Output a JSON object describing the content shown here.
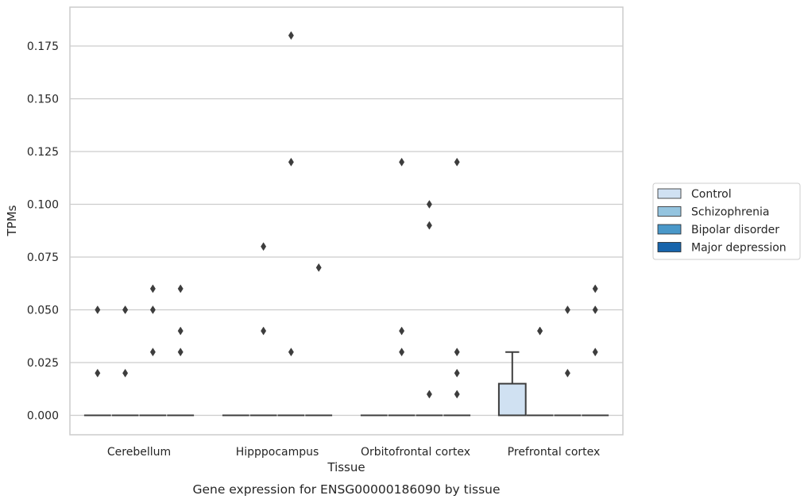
{
  "caption": "Gene expression for ENSG00000186090 by tissue",
  "chart_data": {
    "type": "box",
    "xlabel": "Tissue",
    "ylabel": "TPMs",
    "ylim": [
      -0.009,
      0.191
    ],
    "yticks": [
      0.0,
      0.025,
      0.05,
      0.075,
      0.1,
      0.125,
      0.15,
      0.175
    ],
    "ytick_labels": [
      "0.000",
      "0.025",
      "0.050",
      "0.075",
      "0.100",
      "0.125",
      "0.150",
      "0.175"
    ],
    "grid": "horizontal",
    "legend_placement": "right",
    "categories": [
      "Cerebellum",
      "Hipppocampus",
      "Orbitofrontal cortex",
      "Prefrontal cortex"
    ],
    "series": [
      {
        "name": "Control",
        "color": "#d0e1f2",
        "boxes": [
          {
            "q1": 0,
            "median": 0,
            "q3": 0,
            "whisker_low": 0,
            "whisker_high": 0,
            "outliers": [
              0.02,
              0.05
            ]
          },
          {
            "q1": 0,
            "median": 0,
            "q3": 0,
            "whisker_low": 0,
            "whisker_high": 0,
            "outliers": []
          },
          {
            "q1": 0,
            "median": 0,
            "q3": 0,
            "whisker_low": 0,
            "whisker_high": 0,
            "outliers": []
          },
          {
            "q1": 0,
            "median": 0,
            "q3": 0.015,
            "whisker_low": 0,
            "whisker_high": 0.03,
            "outliers": []
          }
        ]
      },
      {
        "name": "Schizophrenia",
        "color": "#94c4df",
        "boxes": [
          {
            "q1": 0,
            "median": 0,
            "q3": 0,
            "whisker_low": 0,
            "whisker_high": 0,
            "outliers": [
              0.05,
              0.05,
              0.02
            ]
          },
          {
            "q1": 0,
            "median": 0,
            "q3": 0,
            "whisker_low": 0,
            "whisker_high": 0,
            "outliers": [
              0.08,
              0.04
            ]
          },
          {
            "q1": 0,
            "median": 0,
            "q3": 0,
            "whisker_low": 0,
            "whisker_high": 0,
            "outliers": [
              0.12,
              0.04,
              0.03
            ]
          },
          {
            "q1": 0,
            "median": 0,
            "q3": 0,
            "whisker_low": 0,
            "whisker_high": 0,
            "outliers": [
              0.04,
              0.04
            ]
          }
        ]
      },
      {
        "name": "Bipolar disorder",
        "color": "#4a98c9",
        "boxes": [
          {
            "q1": 0,
            "median": 0,
            "q3": 0,
            "whisker_low": 0,
            "whisker_high": 0,
            "outliers": [
              0.06,
              0.05,
              0.03
            ]
          },
          {
            "q1": 0,
            "median": 0,
            "q3": 0,
            "whisker_low": 0,
            "whisker_high": 0,
            "outliers": [
              0.18,
              0.12,
              0.03
            ]
          },
          {
            "q1": 0,
            "median": 0,
            "q3": 0,
            "whisker_low": 0,
            "whisker_high": 0,
            "outliers": [
              0.1,
              0.09,
              0.01
            ]
          },
          {
            "q1": 0,
            "median": 0,
            "q3": 0,
            "whisker_low": 0,
            "whisker_high": 0,
            "outliers": [
              0.05,
              0.02
            ]
          }
        ]
      },
      {
        "name": "Major depression",
        "color": "#1764ab",
        "boxes": [
          {
            "q1": 0,
            "median": 0,
            "q3": 0,
            "whisker_low": 0,
            "whisker_high": 0,
            "outliers": [
              0.06,
              0.04,
              0.03
            ]
          },
          {
            "q1": 0,
            "median": 0,
            "q3": 0,
            "whisker_low": 0,
            "whisker_high": 0,
            "outliers": [
              0.07
            ]
          },
          {
            "q1": 0,
            "median": 0,
            "q3": 0,
            "whisker_low": 0,
            "whisker_high": 0,
            "outliers": [
              0.12,
              0.03,
              0.02,
              0.01
            ]
          },
          {
            "q1": 0,
            "median": 0,
            "q3": 0,
            "whisker_low": 0,
            "whisker_high": 0,
            "outliers": [
              0.06,
              0.05,
              0.03
            ]
          }
        ]
      }
    ]
  }
}
